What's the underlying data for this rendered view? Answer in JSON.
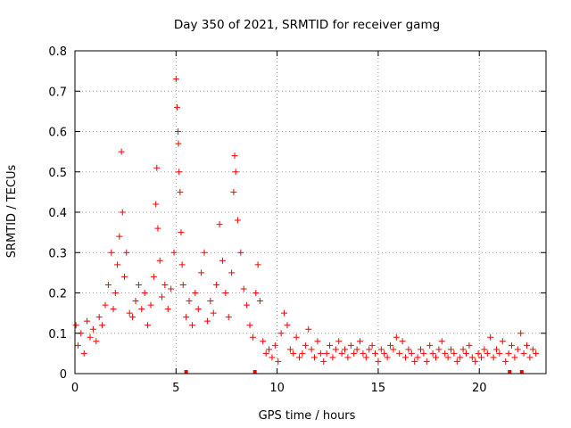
{
  "chart_data": {
    "type": "scatter",
    "title": "Day 350 of 2021, SRMTID for receiver gamg",
    "xlabel": "GPS time / hours",
    "ylabel": "SRMTID / TECUs",
    "xlim": [
      0,
      23.3
    ],
    "ylim": [
      0,
      0.8
    ],
    "xticks": [
      0,
      5,
      10,
      15,
      20
    ],
    "yticks": [
      0,
      0.1,
      0.2,
      0.3,
      0.4,
      0.5,
      0.6,
      0.7,
      0.8
    ],
    "ytick_labels": [
      "0",
      "0.1",
      "0.2",
      "0.3",
      "0.4",
      "0.5",
      "0.6",
      "0.7",
      "0.8"
    ],
    "grid": true,
    "marker": "+",
    "color": "#ff0000",
    "zero_markers_x": [
      5.5,
      8.9,
      21.5,
      22.1
    ],
    "series": [
      {
        "name": "SRMTID",
        "x": [
          0.05,
          0.15,
          0.3,
          0.45,
          0.6,
          0.75,
          0.9,
          1.05,
          1.2,
          1.35,
          1.5,
          1.65,
          1.8,
          1.9,
          2.0,
          2.1,
          2.2,
          2.3,
          2.35,
          2.45,
          2.55,
          2.7,
          2.85,
          3.0,
          3.15,
          3.3,
          3.45,
          3.6,
          3.75,
          3.9,
          4.0,
          4.05,
          4.1,
          4.2,
          4.3,
          4.45,
          4.6,
          4.75,
          4.9,
          5.0,
          5.05,
          5.1,
          5.12,
          5.15,
          5.2,
          5.25,
          5.3,
          5.35,
          5.5,
          5.65,
          5.8,
          5.95,
          6.1,
          6.25,
          6.4,
          6.55,
          6.7,
          6.85,
          7.0,
          7.15,
          7.3,
          7.45,
          7.6,
          7.75,
          7.85,
          7.9,
          7.95,
          8.05,
          8.2,
          8.35,
          8.5,
          8.65,
          8.8,
          8.95,
          9.05,
          9.15,
          9.3,
          9.45,
          9.6,
          9.75,
          9.9,
          10.05,
          10.2,
          10.35,
          10.5,
          10.65,
          10.8,
          10.95,
          11.1,
          11.25,
          11.4,
          11.55,
          11.7,
          11.85,
          12.0,
          12.15,
          12.3,
          12.45,
          12.6,
          12.75,
          12.9,
          13.05,
          13.2,
          13.35,
          13.5,
          13.65,
          13.8,
          13.95,
          14.1,
          14.25,
          14.4,
          14.55,
          14.7,
          14.85,
          15.0,
          15.15,
          15.3,
          15.45,
          15.6,
          15.75,
          15.9,
          16.05,
          16.2,
          16.35,
          16.5,
          16.65,
          16.8,
          16.95,
          17.1,
          17.25,
          17.4,
          17.55,
          17.7,
          17.85,
          18.0,
          18.15,
          18.3,
          18.45,
          18.6,
          18.75,
          18.9,
          19.05,
          19.2,
          19.35,
          19.5,
          19.65,
          19.8,
          19.95,
          20.1,
          20.25,
          20.4,
          20.55,
          20.7,
          20.85,
          21.0,
          21.15,
          21.3,
          21.45,
          21.6,
          21.75,
          21.9,
          22.05,
          22.2,
          22.35,
          22.5,
          22.65,
          22.8
        ],
        "y": [
          0.12,
          0.07,
          0.1,
          0.05,
          0.13,
          0.09,
          0.11,
          0.08,
          0.14,
          0.12,
          0.17,
          0.22,
          0.3,
          0.16,
          0.2,
          0.27,
          0.34,
          0.55,
          0.4,
          0.24,
          0.3,
          0.15,
          0.14,
          0.18,
          0.22,
          0.16,
          0.2,
          0.12,
          0.17,
          0.24,
          0.42,
          0.51,
          0.36,
          0.28,
          0.19,
          0.22,
          0.16,
          0.21,
          0.3,
          0.73,
          0.66,
          0.6,
          0.57,
          0.5,
          0.45,
          0.35,
          0.27,
          0.22,
          0.14,
          0.18,
          0.12,
          0.2,
          0.16,
          0.25,
          0.3,
          0.13,
          0.18,
          0.15,
          0.22,
          0.37,
          0.28,
          0.2,
          0.14,
          0.25,
          0.45,
          0.54,
          0.5,
          0.38,
          0.3,
          0.21,
          0.17,
          0.12,
          0.09,
          0.2,
          0.27,
          0.18,
          0.08,
          0.05,
          0.06,
          0.04,
          0.07,
          0.03,
          0.1,
          0.15,
          0.12,
          0.06,
          0.05,
          0.09,
          0.04,
          0.05,
          0.07,
          0.11,
          0.06,
          0.04,
          0.08,
          0.05,
          0.03,
          0.05,
          0.07,
          0.04,
          0.06,
          0.08,
          0.05,
          0.06,
          0.04,
          0.07,
          0.05,
          0.06,
          0.08,
          0.05,
          0.04,
          0.06,
          0.07,
          0.05,
          0.03,
          0.06,
          0.05,
          0.04,
          0.07,
          0.06,
          0.09,
          0.05,
          0.08,
          0.04,
          0.06,
          0.05,
          0.03,
          0.04,
          0.06,
          0.05,
          0.03,
          0.07,
          0.05,
          0.04,
          0.06,
          0.08,
          0.05,
          0.04,
          0.06,
          0.05,
          0.03,
          0.04,
          0.06,
          0.05,
          0.07,
          0.04,
          0.03,
          0.05,
          0.04,
          0.06,
          0.05,
          0.09,
          0.04,
          0.06,
          0.05,
          0.08,
          0.03,
          0.05,
          0.07,
          0.04,
          0.06,
          0.1,
          0.05,
          0.07,
          0.04,
          0.06,
          0.05
        ]
      }
    ]
  }
}
